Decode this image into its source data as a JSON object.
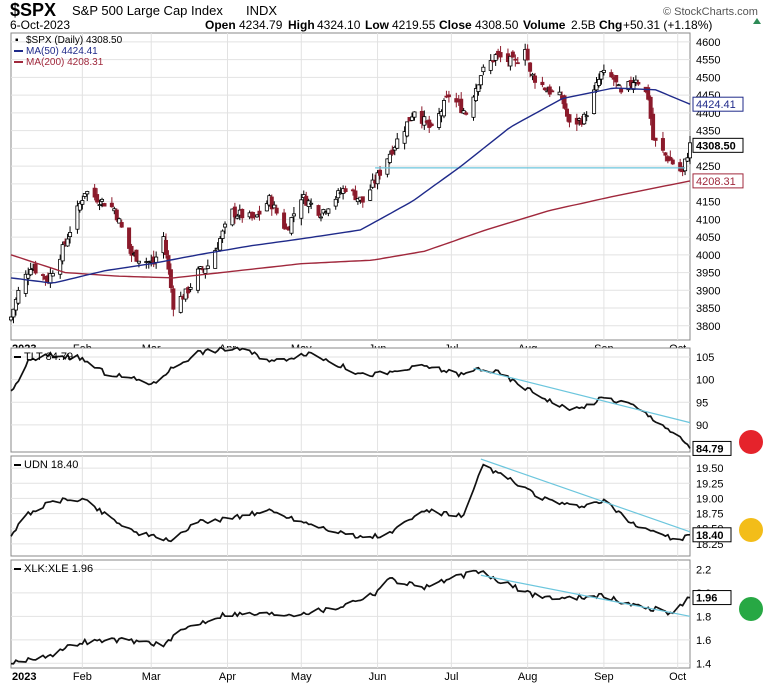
{
  "header": {
    "symbol": "$SPX",
    "name": "S&P 500 Large Cap Index",
    "exchange": "INDX",
    "date": "6-Oct-2023",
    "open_label": "Open",
    "open": "4234.79",
    "high_label": "High",
    "high": "4324.10",
    "low_label": "Low",
    "low": "4219.55",
    "close_label": "Close",
    "close": "4308.50",
    "volume_label": "Volume",
    "volume": "2.5B",
    "chg_label": "Chg",
    "chg": "+50.31 (+1.18%)",
    "watermark": "© StockCharts.com"
  },
  "chart_data": [
    {
      "type": "candlestick",
      "legend": [
        {
          "label": "$SPX (Daily) 4308.50",
          "color": "#000000"
        },
        {
          "label": "MA(50) 4424.41",
          "color": "#1f2a8a"
        },
        {
          "label": "MA(200) 4208.31",
          "color": "#a0283c"
        }
      ],
      "ylim": [
        3760,
        4625
      ],
      "yticks": [
        3800,
        3850,
        3900,
        3950,
        4000,
        4050,
        4100,
        4150,
        4200,
        4250,
        4300,
        4350,
        4400,
        4450,
        4500,
        4550,
        4600
      ],
      "price_labels": [
        {
          "value": "4424.41",
          "y": 4424.41,
          "color": "#1f2a8a"
        },
        {
          "value": "4308.50",
          "y": 4308.5,
          "color": "#000000"
        },
        {
          "value": "4208.31",
          "y": 4208.31,
          "color": "#a0283c"
        }
      ],
      "x_start": "2023-01-03",
      "x_end": "2023-10-06",
      "close_anchors": [
        [
          "2023-01-03",
          3825
        ],
        [
          "2023-01-06",
          3895
        ],
        [
          "2023-01-11",
          3970
        ],
        [
          "2023-01-18",
          3930
        ],
        [
          "2023-01-24",
          4015
        ],
        [
          "2023-02-02",
          4180
        ],
        [
          "2023-02-07",
          4160
        ],
        [
          "2023-02-14",
          4130
        ],
        [
          "2023-02-21",
          4000
        ],
        [
          "2023-02-28",
          3980
        ],
        [
          "2023-03-02",
          3975
        ],
        [
          "2023-03-06",
          4050
        ],
        [
          "2023-03-10",
          3860
        ],
        [
          "2023-03-15",
          3890
        ],
        [
          "2023-03-20",
          3950
        ],
        [
          "2023-03-24",
          3970
        ],
        [
          "2023-04-03",
          4120
        ],
        [
          "2023-04-12",
          4100
        ],
        [
          "2023-04-18",
          4155
        ],
        [
          "2023-04-25",
          4070
        ],
        [
          "2023-05-01",
          4165
        ],
        [
          "2023-05-09",
          4120
        ],
        [
          "2023-05-19",
          4190
        ],
        [
          "2023-05-26",
          4150
        ],
        [
          "2023-06-01",
          4220
        ],
        [
          "2023-06-05",
          4275
        ],
        [
          "2023-06-13",
          4370
        ],
        [
          "2023-06-16",
          4410
        ],
        [
          "2023-06-23",
          4350
        ],
        [
          "2023-06-30",
          4450
        ],
        [
          "2023-07-07",
          4400
        ],
        [
          "2023-07-13",
          4510
        ],
        [
          "2023-07-19",
          4560
        ],
        [
          "2023-07-27",
          4540
        ],
        [
          "2023-07-31",
          4590
        ],
        [
          "2023-08-02",
          4510
        ],
        [
          "2023-08-09",
          4465
        ],
        [
          "2023-08-15",
          4440
        ],
        [
          "2023-08-18",
          4365
        ],
        [
          "2023-08-24",
          4385
        ],
        [
          "2023-08-31",
          4510
        ],
        [
          "2023-09-05",
          4495
        ],
        [
          "2023-09-08",
          4450
        ],
        [
          "2023-09-14",
          4500
        ],
        [
          "2023-09-19",
          4445
        ],
        [
          "2023-09-21",
          4325
        ],
        [
          "2023-09-26",
          4280
        ],
        [
          "2023-10-03",
          4230
        ],
        [
          "2023-10-04",
          4260
        ],
        [
          "2023-10-06",
          4308.5
        ]
      ],
      "ma50": {
        "name": "MA(50)",
        "values": [
          [
            "2023-01-03",
            3935
          ],
          [
            "2023-01-20",
            3920
          ],
          [
            "2023-02-10",
            3955
          ],
          [
            "2023-03-01",
            3975
          ],
          [
            "2023-03-20",
            4000
          ],
          [
            "2023-04-10",
            4025
          ],
          [
            "2023-05-01",
            4045
          ],
          [
            "2023-05-25",
            4070
          ],
          [
            "2023-06-15",
            4150
          ],
          [
            "2023-07-05",
            4250
          ],
          [
            "2023-07-25",
            4360
          ],
          [
            "2023-08-15",
            4440
          ],
          [
            "2023-09-05",
            4470
          ],
          [
            "2023-09-22",
            4465
          ],
          [
            "2023-10-06",
            4424.41
          ]
        ]
      },
      "ma200": {
        "name": "MA(200)",
        "values": [
          [
            "2023-01-03",
            4000
          ],
          [
            "2023-01-25",
            3950
          ],
          [
            "2023-02-15",
            3940
          ],
          [
            "2023-03-10",
            3935
          ],
          [
            "2023-04-05",
            3955
          ],
          [
            "2023-05-01",
            3975
          ],
          [
            "2023-05-30",
            3985
          ],
          [
            "2023-06-20",
            4010
          ],
          [
            "2023-07-15",
            4070
          ],
          [
            "2023-08-10",
            4125
          ],
          [
            "2023-09-05",
            4165
          ],
          [
            "2023-10-06",
            4208.31
          ]
        ]
      },
      "support_line": {
        "y": 4245,
        "from": "2023-05-31",
        "to": "2023-10-04"
      }
    },
    {
      "type": "line",
      "legend_label": "TLT 84.79",
      "last_value": "84.79",
      "ylim": [
        84,
        107
      ],
      "yticks": [
        90,
        95,
        100,
        105
      ],
      "trendline": {
        "from": [
          "2023-07-10",
          102.5
        ],
        "to": [
          "2023-10-06",
          90.5
        ]
      },
      "signal_color": "#e5232b",
      "anchors": [
        [
          "2023-01-03",
          97
        ],
        [
          "2023-01-10",
          104
        ],
        [
          "2023-01-19",
          105.5
        ],
        [
          "2023-01-31",
          104.8
        ],
        [
          "2023-02-10",
          101.5
        ],
        [
          "2023-02-23",
          100
        ],
        [
          "2023-03-02",
          99
        ],
        [
          "2023-03-08",
          102
        ],
        [
          "2023-03-20",
          106
        ],
        [
          "2023-04-05",
          107
        ],
        [
          "2023-04-20",
          104
        ],
        [
          "2023-05-04",
          106
        ],
        [
          "2023-05-26",
          101
        ],
        [
          "2023-06-06",
          101.5
        ],
        [
          "2023-06-20",
          103
        ],
        [
          "2023-07-06",
          101
        ],
        [
          "2023-07-12",
          102.5
        ],
        [
          "2023-07-20",
          101.5
        ],
        [
          "2023-08-04",
          97
        ],
        [
          "2023-08-15",
          94
        ],
        [
          "2023-08-22",
          93.5
        ],
        [
          "2023-09-01",
          96
        ],
        [
          "2023-09-12",
          94.5
        ],
        [
          "2023-09-25",
          90
        ],
        [
          "2023-10-04",
          86
        ],
        [
          "2023-10-06",
          84.79
        ]
      ]
    },
    {
      "type": "line",
      "legend_label": "UDN 18.40",
      "last_value": "18.40",
      "ylim": [
        18.05,
        19.7
      ],
      "yticks": [
        18.25,
        18.5,
        18.75,
        19.0,
        19.25,
        19.5
      ],
      "trendline": {
        "from": [
          "2023-07-13",
          19.65
        ],
        "to": [
          "2023-10-06",
          18.45
        ]
      },
      "signal_color": "#f3bd19",
      "anchors": [
        [
          "2023-01-03",
          18.4
        ],
        [
          "2023-01-10",
          18.75
        ],
        [
          "2023-01-20",
          18.95
        ],
        [
          "2023-02-01",
          19.0
        ],
        [
          "2023-02-10",
          18.75
        ],
        [
          "2023-02-22",
          18.45
        ],
        [
          "2023-03-03",
          18.35
        ],
        [
          "2023-03-08",
          18.3
        ],
        [
          "2023-03-20",
          18.6
        ],
        [
          "2023-04-05",
          18.7
        ],
        [
          "2023-04-18",
          18.8
        ],
        [
          "2023-05-03",
          18.6
        ],
        [
          "2023-05-25",
          18.35
        ],
        [
          "2023-06-05",
          18.4
        ],
        [
          "2023-06-20",
          18.8
        ],
        [
          "2023-07-06",
          18.7
        ],
        [
          "2023-07-14",
          19.55
        ],
        [
          "2023-07-25",
          19.3
        ],
        [
          "2023-08-07",
          19.0
        ],
        [
          "2023-08-20",
          18.85
        ],
        [
          "2023-09-01",
          18.95
        ],
        [
          "2023-09-12",
          18.6
        ],
        [
          "2023-09-25",
          18.4
        ],
        [
          "2023-10-02",
          18.3
        ],
        [
          "2023-10-06",
          18.4
        ]
      ]
    },
    {
      "type": "line",
      "legend_label": "XLK:XLE 1.96",
      "last_value": "1.96",
      "ylim": [
        1.36,
        2.28
      ],
      "yticks": [
        1.4,
        1.6,
        1.8,
        2.0,
        2.2
      ],
      "trendline": {
        "from": [
          "2023-07-13",
          2.15
        ],
        "to": [
          "2023-10-06",
          1.8
        ]
      },
      "signal_color": "#27a844",
      "x_tick_labels": [
        "2023",
        "Feb",
        "Mar",
        "Apr",
        "May",
        "Jun",
        "Jul",
        "Aug",
        "Sep",
        "Oct"
      ],
      "anchors": [
        [
          "2023-01-03",
          1.4
        ],
        [
          "2023-01-20",
          1.48
        ],
        [
          "2023-01-31",
          1.58
        ],
        [
          "2023-02-15",
          1.6
        ],
        [
          "2023-02-28",
          1.58
        ],
        [
          "2023-03-06",
          1.55
        ],
        [
          "2023-03-15",
          1.7
        ],
        [
          "2023-03-31",
          1.82
        ],
        [
          "2023-04-14",
          1.82
        ],
        [
          "2023-04-28",
          1.82
        ],
        [
          "2023-05-15",
          1.87
        ],
        [
          "2023-05-31",
          2.0
        ],
        [
          "2023-06-05",
          2.12
        ],
        [
          "2023-06-20",
          2.05
        ],
        [
          "2023-07-06",
          2.15
        ],
        [
          "2023-07-13",
          2.18
        ],
        [
          "2023-07-20",
          2.1
        ],
        [
          "2023-08-04",
          1.98
        ],
        [
          "2023-08-15",
          1.95
        ],
        [
          "2023-08-30",
          1.98
        ],
        [
          "2023-09-12",
          1.9
        ],
        [
          "2023-09-25",
          1.85
        ],
        [
          "2023-09-28",
          1.82
        ],
        [
          "2023-10-04",
          1.93
        ],
        [
          "2023-10-06",
          1.96
        ]
      ]
    }
  ]
}
